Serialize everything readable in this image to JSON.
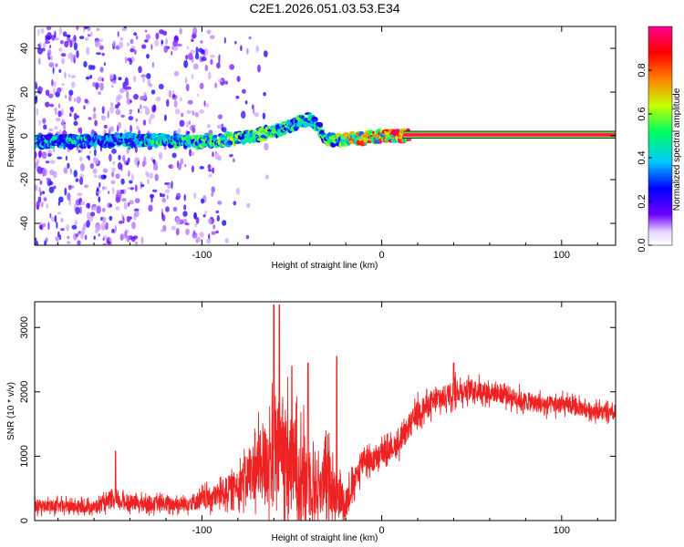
{
  "chart_data": [
    {
      "type": "heatmap",
      "title": "C2E1.2026.051.03.53.E34",
      "xlabel": "Height of straight line (km)",
      "ylabel": "Frequency (Hz)",
      "xlim": [
        -193,
        130
      ],
      "ylim": [
        -50,
        50
      ],
      "x_ticks": [
        -100,
        0,
        100
      ],
      "x_tick_labels": [
        "-100",
        "0",
        "100"
      ],
      "y_ticks": [
        -40,
        -20,
        0,
        20,
        40
      ],
      "y_tick_labels": [
        "-40",
        "-20",
        "0",
        "20",
        "40"
      ],
      "colorbar": {
        "label": "Normalized spectral amplitude",
        "range": [
          0,
          1
        ],
        "ticks": [
          0.0,
          0.2,
          0.4,
          0.6,
          0.8
        ],
        "tick_labels": [
          "0.0",
          "0.2",
          "0.4",
          "0.6",
          "0.8"
        ],
        "colormap": [
          "#ffffff",
          "#7000ff",
          "#0000ff",
          "#00c8ff",
          "#00ff60",
          "#c8ff00",
          "#ff8000",
          "#ff0000",
          "#ff0090"
        ]
      },
      "ridge": {
        "description": "dominant frequency trace vs height",
        "x": [
          -193,
          -150,
          -120,
          -100,
          -80,
          -60,
          -50,
          -40,
          -30,
          -20,
          -10,
          0,
          10,
          15,
          130
        ],
        "freq": [
          -3,
          -2,
          -2,
          -3,
          -1,
          2,
          5,
          8,
          -2,
          -2,
          -1,
          0,
          0,
          0.5,
          0.5
        ],
        "amplitude": [
          0.45,
          0.45,
          0.5,
          0.55,
          0.6,
          0.6,
          0.55,
          0.5,
          0.6,
          0.7,
          0.85,
          0.9,
          0.95,
          1.0,
          1.0
        ]
      }
    },
    {
      "type": "line",
      "xlabel": "Height of straight line (km)",
      "ylabel": "SNR (10 * v/v)",
      "xlim": [
        -193,
        130
      ],
      "ylim": [
        0,
        3400
      ],
      "x_ticks": [
        -100,
        0,
        100
      ],
      "x_tick_labels": [
        "-100",
        "0",
        "100"
      ],
      "y_ticks": [
        0,
        1000,
        2000,
        3000
      ],
      "y_tick_labels": [
        "0",
        "1000",
        "2000",
        "3000"
      ],
      "series": [
        {
          "name": "SNR",
          "color": "#ee2222",
          "envelope_x": [
            -193,
            -160,
            -150,
            -130,
            -110,
            -95,
            -80,
            -70,
            -60,
            -55,
            -50,
            -45,
            -40,
            -35,
            -30,
            -25,
            -20,
            -15,
            -10,
            -5,
            0,
            10,
            20,
            30,
            40,
            50,
            60,
            70,
            80,
            90,
            100,
            110,
            120,
            130
          ],
          "envelope_mid": [
            230,
            210,
            300,
            260,
            260,
            350,
            550,
            800,
            1000,
            1100,
            850,
            800,
            600,
            500,
            650,
            400,
            300,
            600,
            1000,
            900,
            1050,
            1200,
            1700,
            1850,
            2000,
            2050,
            2000,
            1950,
            1850,
            1800,
            1800,
            1750,
            1700,
            1650
          ],
          "envelope_spread": [
            120,
            110,
            140,
            130,
            140,
            200,
            300,
            600,
            900,
            1100,
            900,
            800,
            700,
            500,
            600,
            400,
            300,
            250,
            250,
            200,
            200,
            200,
            220,
            220,
            220,
            180,
            180,
            180,
            170,
            170,
            160,
            150,
            140,
            130
          ],
          "spikes": [
            {
              "x": -148,
              "y": 1080
            },
            {
              "x": -60,
              "y": 3350
            },
            {
              "x": -57,
              "y": 3350
            },
            {
              "x": -50,
              "y": 2400
            },
            {
              "x": -41,
              "y": 2450
            },
            {
              "x": -25,
              "y": 2550
            },
            {
              "x": 40,
              "y": 2450
            }
          ]
        }
      ]
    }
  ]
}
